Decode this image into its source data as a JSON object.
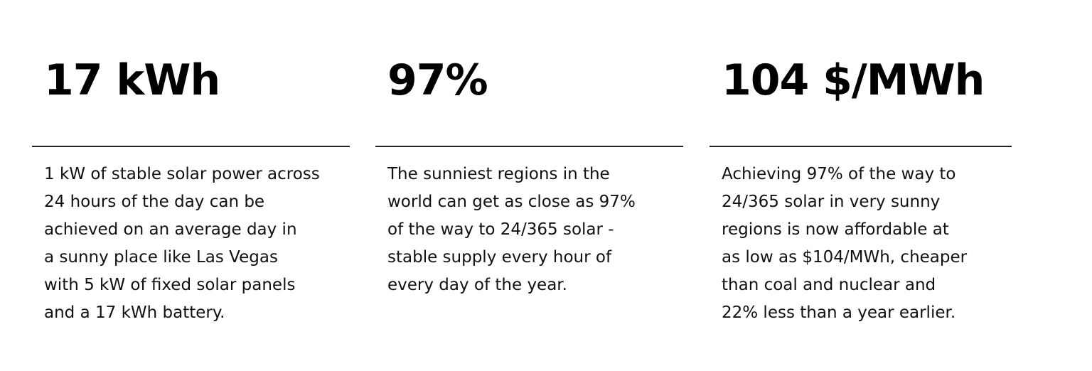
{
  "columns": [
    {
      "stat": "17 kWh",
      "lines": [
        "1 kW of stable solar power across",
        "24 hours of the day can be",
        "achieved on an average day in",
        "a sunny place like Las Vegas",
        "with 5 kW of fixed solar panels",
        "and a 17 kWh battery."
      ]
    },
    {
      "stat": "97%",
      "lines": [
        "The sunniest regions in the",
        "world can get as close as 97%",
        "of the way to 24/365 solar -",
        "stable supply every hour of",
        "every day of the year."
      ]
    },
    {
      "stat": "104 $/MWh",
      "lines": [
        "Achieving 97% of the way to",
        "24/365 solar in very sunny",
        "regions is now affordable at",
        "as low as $104/MWh, cheaper",
        "than coal and nuclear and",
        "22% less than a year earlier."
      ]
    }
  ]
}
